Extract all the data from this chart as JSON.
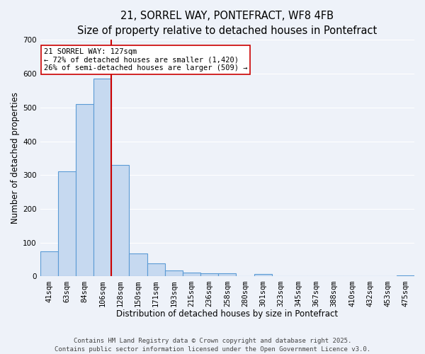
{
  "title_line1": "21, SORREL WAY, PONTEFRACT, WF8 4FB",
  "title_line2": "Size of property relative to detached houses in Pontefract",
  "xlabel": "Distribution of detached houses by size in Pontefract",
  "ylabel": "Number of detached properties",
  "footer_line1": "Contains HM Land Registry data © Crown copyright and database right 2025.",
  "footer_line2": "Contains public sector information licensed under the Open Government Licence v3.0.",
  "bar_labels": [
    "41sqm",
    "63sqm",
    "84sqm",
    "106sqm",
    "128sqm",
    "150sqm",
    "171sqm",
    "193sqm",
    "215sqm",
    "236sqm",
    "258sqm",
    "280sqm",
    "301sqm",
    "323sqm",
    "345sqm",
    "367sqm",
    "388sqm",
    "410sqm",
    "432sqm",
    "453sqm",
    "475sqm"
  ],
  "bar_values": [
    75,
    310,
    510,
    585,
    330,
    68,
    38,
    18,
    12,
    10,
    10,
    0,
    7,
    0,
    0,
    0,
    0,
    0,
    0,
    0,
    4
  ],
  "bar_color": "#c6d9f0",
  "bar_edge_color": "#5b9bd5",
  "bar_edge_width": 0.8,
  "vline_x_index": 3.5,
  "vline_color": "#cc0000",
  "annotation_text": "21 SORREL WAY: 127sqm\n← 72% of detached houses are smaller (1,420)\n26% of semi-detached houses are larger (509) →",
  "annotation_box_facecolor": "#ffffff",
  "annotation_box_edgecolor": "#cc0000",
  "ylim": [
    0,
    700
  ],
  "yticks": [
    0,
    100,
    200,
    300,
    400,
    500,
    600,
    700
  ],
  "background_color": "#eef2f9",
  "plot_background_color": "#eef2f9",
  "grid_color": "#ffffff",
  "title_fontsize": 10.5,
  "subtitle_fontsize": 9.5,
  "axis_label_fontsize": 8.5,
  "tick_fontsize": 7.5,
  "annotation_fontsize": 7.5,
  "footer_fontsize": 6.5,
  "ylabel_fontsize": 8.5
}
